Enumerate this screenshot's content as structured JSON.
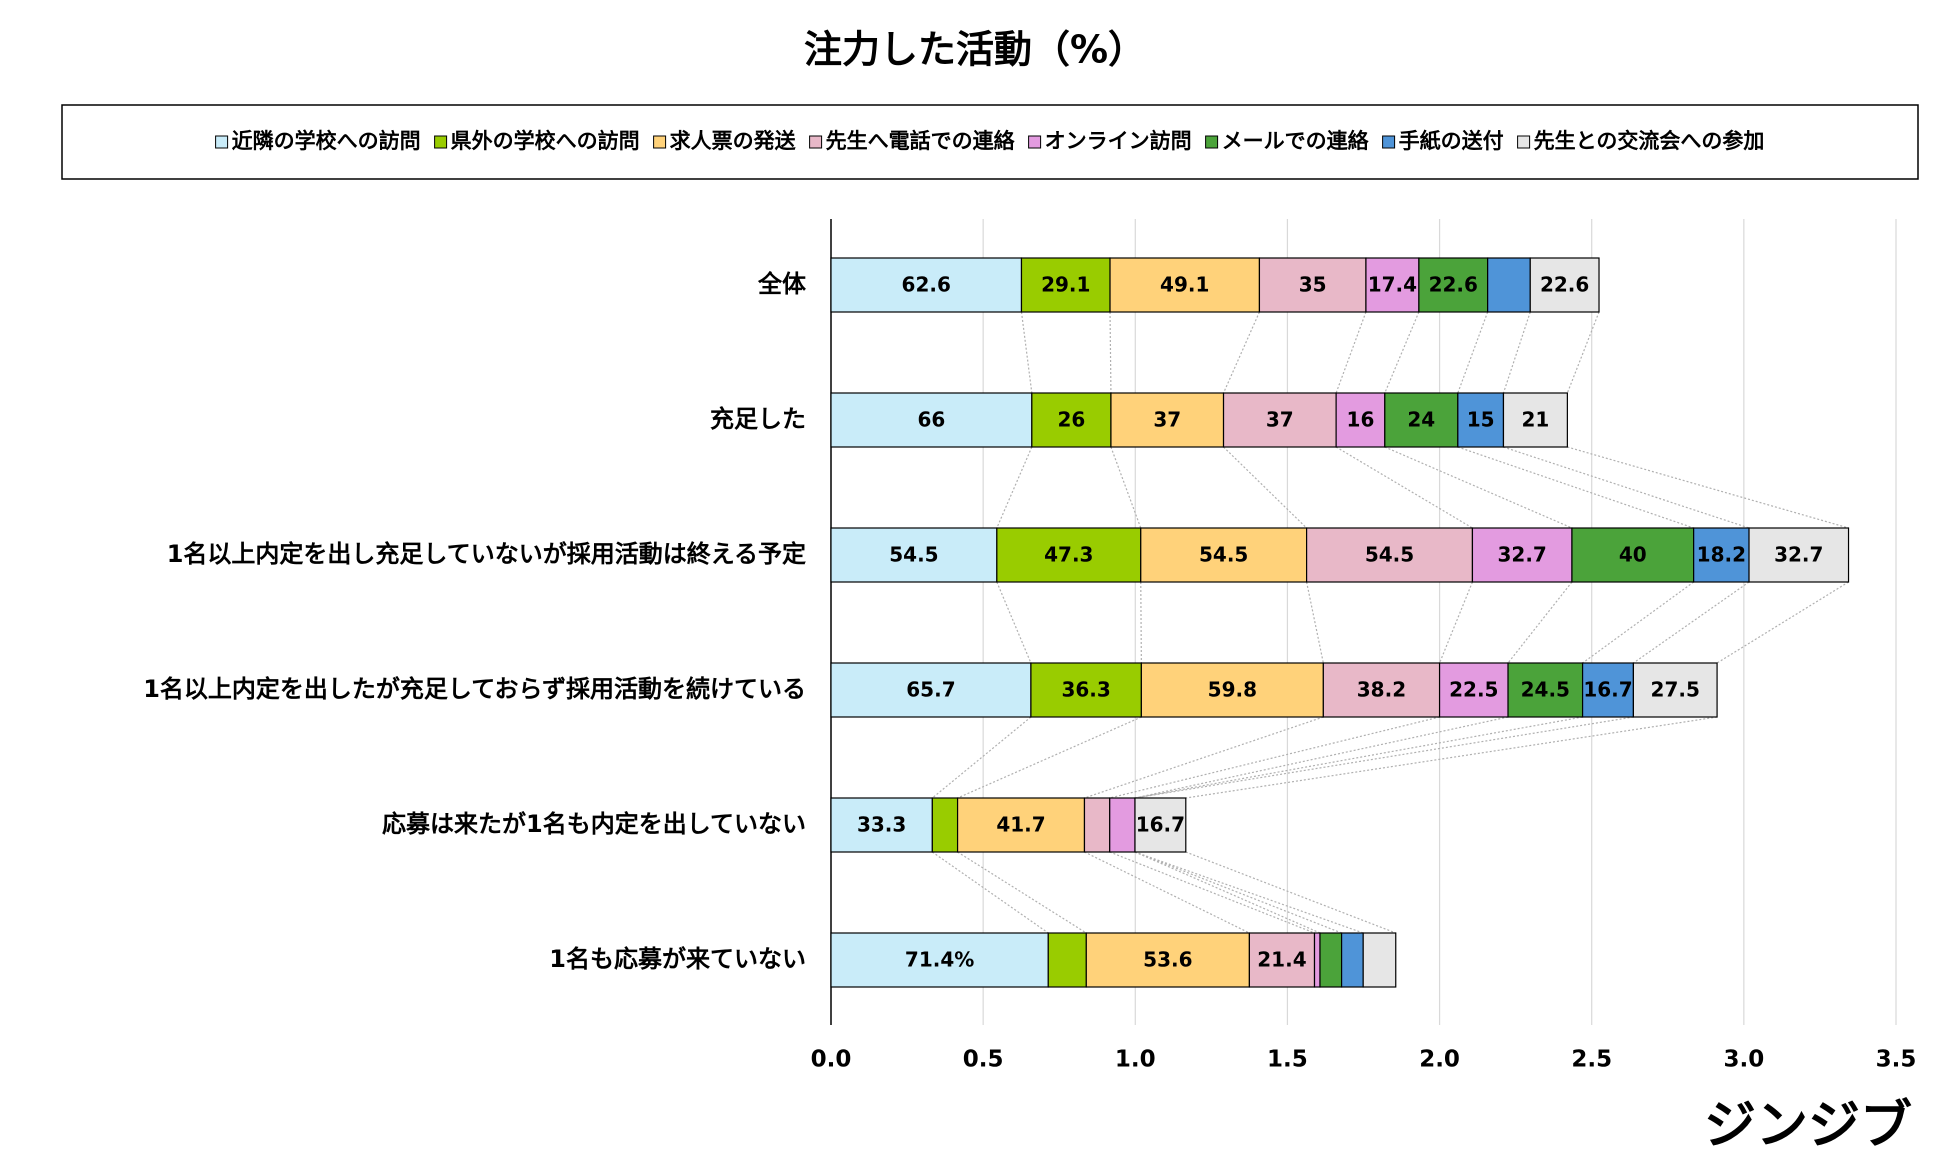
{
  "chart_data": {
    "type": "stacked-bar-horizontal",
    "title": "注力した活動（%）",
    "categories": [
      "全体",
      "充足した",
      "1名以上内定を出し充足していないが採用活動は終える予定",
      "1名以上内定を出したが充足しておらず採用活動を続けている",
      "応募は来たが1名も内定を出していない",
      "1名も応募が来ていない"
    ],
    "series": [
      {
        "name": "近隣の学校への訪問",
        "color": "#c9ecf9",
        "values": [
          0.626,
          0.66,
          0.545,
          0.657,
          0.333,
          0.714
        ],
        "value_labels": [
          "62.6",
          "66",
          "54.5",
          "65.7",
          "33.3",
          "71.4%"
        ]
      },
      {
        "name": "県外の学校への訪問",
        "color": "#99cc00",
        "values": [
          0.291,
          0.26,
          0.473,
          0.363,
          0.083,
          0.125
        ],
        "value_labels": [
          "29.1",
          "26",
          "47.3",
          "36.3",
          null,
          null
        ]
      },
      {
        "name": "求人票の発送",
        "color": "#ffd27a",
        "values": [
          0.491,
          0.37,
          0.545,
          0.598,
          0.417,
          0.536
        ],
        "value_labels": [
          "49.1",
          "37",
          "54.5",
          "59.8",
          "41.7",
          "53.6"
        ]
      },
      {
        "name": "先生へ電話での連絡",
        "color": "#e8b8c8",
        "values": [
          0.35,
          0.37,
          0.545,
          0.382,
          0.083,
          0.214
        ],
        "value_labels": [
          "35",
          "37",
          "54.5",
          "38.2",
          null,
          "21.4"
        ]
      },
      {
        "name": "オンライン訪問",
        "color": "#e39be0",
        "values": [
          0.174,
          0.16,
          0.327,
          0.225,
          0.083,
          0.018
        ],
        "value_labels": [
          "17.4",
          "16",
          "32.7",
          "22.5",
          null,
          null
        ]
      },
      {
        "name": "メールでの連絡",
        "color": "#4ba33a",
        "values": [
          0.226,
          0.24,
          0.4,
          0.245,
          0,
          0.071
        ],
        "value_labels": [
          "22.6",
          "24",
          "40",
          "24.5",
          null,
          null
        ]
      },
      {
        "name": "手紙の送付",
        "color": "#4f94d8",
        "values": [
          0.14,
          0.15,
          0.182,
          0.167,
          0,
          0.071
        ],
        "value_labels": [
          null,
          "15",
          "18.2",
          "16.7",
          null,
          null
        ]
      },
      {
        "name": "先生との交流会への参加",
        "color": "#e6e6e6",
        "values": [
          0.226,
          0.21,
          0.327,
          0.275,
          0.167,
          0.107
        ],
        "value_labels": [
          "22.6",
          "21",
          "32.7",
          "27.5",
          "16.7",
          null
        ]
      }
    ],
    "xlim": [
      0,
      3.5
    ],
    "xticks": [
      {
        "value": 0,
        "label": "0.0"
      },
      0.5,
      {
        "value": 1,
        "label": "1.0"
      },
      1.5,
      {
        "value": 2,
        "label": "2.0"
      },
      2.5,
      {
        "value": 3,
        "label": "3.0"
      },
      3.5
    ],
    "grid": true,
    "legend": "top",
    "brand": "ジンジブ"
  }
}
